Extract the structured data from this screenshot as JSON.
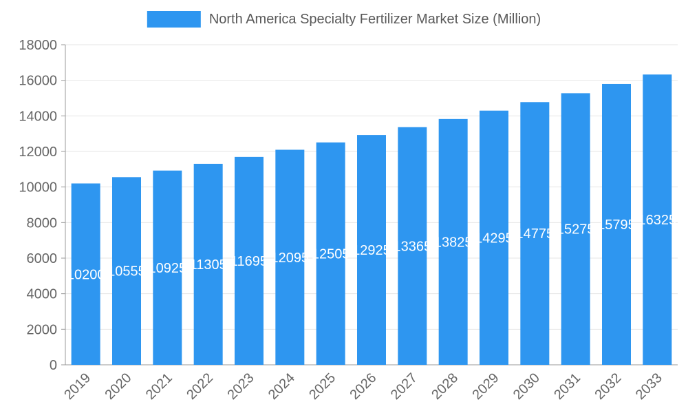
{
  "legend": {
    "marker_color": "#2E96F0"
  },
  "chart_data": {
    "type": "bar",
    "title": "North America Specialty Fertilizer Market Size (Million)",
    "categories": [
      "2019",
      "2020",
      "2021",
      "2022",
      "2023",
      "2024",
      "2025",
      "2026",
      "2027",
      "2028",
      "2029",
      "2030",
      "2031",
      "2032",
      "2033"
    ],
    "values": [
      10200,
      10555,
      10925,
      11305,
      11695,
      12095,
      12505,
      12925,
      13365,
      13825,
      14295,
      14775,
      15275,
      15795,
      16325
    ],
    "xlabel": "",
    "ylabel": "",
    "ylim": [
      0,
      18000
    ],
    "ytick_step": 2000,
    "grid": true,
    "legend_position": "top",
    "colors": {
      "bar": "#2E96F0",
      "value_label": "#FFFFFF",
      "axis_text": "#666666",
      "legend_text": "#595959",
      "grid_line": "#E6E6E6",
      "axis_line": "#999999"
    }
  }
}
